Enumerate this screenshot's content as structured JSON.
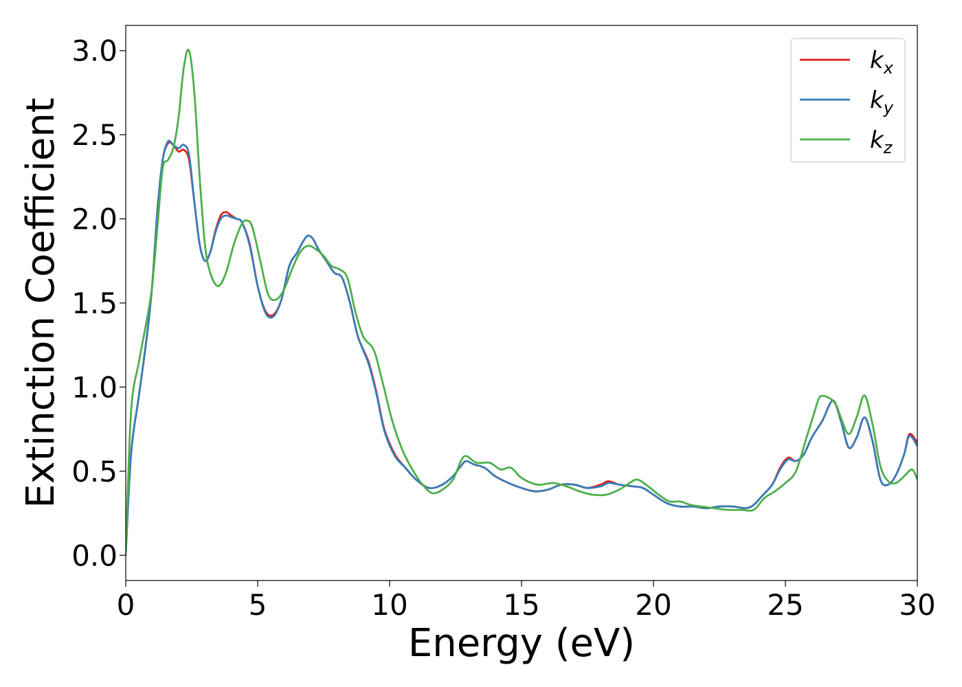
{
  "chart_data": {
    "type": "line",
    "title": "",
    "xlabel": "Energy (eV)",
    "ylabel": "Extinction Coefficient",
    "xlim": [
      0,
      30
    ],
    "ylim": [
      -0.15,
      3.15
    ],
    "xticks": [
      0,
      5,
      10,
      15,
      20,
      25,
      30
    ],
    "xtick_labels": [
      "0",
      "5",
      "10",
      "15",
      "20",
      "25",
      "30"
    ],
    "yticks": [
      0.0,
      0.5,
      1.0,
      1.5,
      2.0,
      2.5,
      3.0
    ],
    "ytick_labels": [
      "0.0",
      "0.5",
      "1.0",
      "1.5",
      "2.0",
      "2.5",
      "3.0"
    ],
    "grid": false,
    "legend_position": "top-right",
    "series": [
      {
        "name": "k",
        "subscript": "x",
        "color": "#e41a1c",
        "points": [
          [
            0,
            0.0
          ],
          [
            0.2,
            0.6
          ],
          [
            0.5,
            0.95
          ],
          [
            0.8,
            1.3
          ],
          [
            1.0,
            1.6
          ],
          [
            1.2,
            2.05
          ],
          [
            1.4,
            2.35
          ],
          [
            1.6,
            2.45
          ],
          [
            1.8,
            2.44
          ],
          [
            2.0,
            2.4
          ],
          [
            2.2,
            2.41
          ],
          [
            2.4,
            2.35
          ],
          [
            2.6,
            2.1
          ],
          [
            2.8,
            1.85
          ],
          [
            3.0,
            1.75
          ],
          [
            3.2,
            1.8
          ],
          [
            3.4,
            1.93
          ],
          [
            3.6,
            2.02
          ],
          [
            3.8,
            2.04
          ],
          [
            4.0,
            2.02
          ],
          [
            4.2,
            2.0
          ],
          [
            4.4,
            1.98
          ],
          [
            4.7,
            1.85
          ],
          [
            5.0,
            1.6
          ],
          [
            5.3,
            1.45
          ],
          [
            5.6,
            1.43
          ],
          [
            5.9,
            1.52
          ],
          [
            6.2,
            1.72
          ],
          [
            6.5,
            1.8
          ],
          [
            6.7,
            1.86
          ],
          [
            6.9,
            1.9
          ],
          [
            7.1,
            1.88
          ],
          [
            7.3,
            1.82
          ],
          [
            7.6,
            1.75
          ],
          [
            7.9,
            1.68
          ],
          [
            8.2,
            1.65
          ],
          [
            8.5,
            1.5
          ],
          [
            8.8,
            1.3
          ],
          [
            9.2,
            1.15
          ],
          [
            9.5,
            0.97
          ],
          [
            9.8,
            0.75
          ],
          [
            10.2,
            0.6
          ],
          [
            10.6,
            0.52
          ],
          [
            11.0,
            0.45
          ],
          [
            11.5,
            0.4
          ],
          [
            12.0,
            0.42
          ],
          [
            12.4,
            0.47
          ],
          [
            12.7,
            0.53
          ],
          [
            12.9,
            0.56
          ],
          [
            13.2,
            0.54
          ],
          [
            13.6,
            0.52
          ],
          [
            14.0,
            0.47
          ],
          [
            14.5,
            0.43
          ],
          [
            15.0,
            0.4
          ],
          [
            15.5,
            0.38
          ],
          [
            16.0,
            0.39
          ],
          [
            16.5,
            0.42
          ],
          [
            17.0,
            0.42
          ],
          [
            17.5,
            0.4
          ],
          [
            18.0,
            0.42
          ],
          [
            18.3,
            0.44
          ],
          [
            18.7,
            0.42
          ],
          [
            19.2,
            0.41
          ],
          [
            19.6,
            0.4
          ],
          [
            20.0,
            0.36
          ],
          [
            20.5,
            0.31
          ],
          [
            21.0,
            0.29
          ],
          [
            21.5,
            0.29
          ],
          [
            22.0,
            0.28
          ],
          [
            22.5,
            0.29
          ],
          [
            23.0,
            0.29
          ],
          [
            23.5,
            0.28
          ],
          [
            23.8,
            0.3
          ],
          [
            24.1,
            0.35
          ],
          [
            24.5,
            0.42
          ],
          [
            24.8,
            0.52
          ],
          [
            25.1,
            0.58
          ],
          [
            25.4,
            0.56
          ],
          [
            25.7,
            0.6
          ],
          [
            26.0,
            0.7
          ],
          [
            26.4,
            0.8
          ],
          [
            26.8,
            0.92
          ],
          [
            27.1,
            0.8
          ],
          [
            27.4,
            0.64
          ],
          [
            27.7,
            0.7
          ],
          [
            28.0,
            0.82
          ],
          [
            28.3,
            0.68
          ],
          [
            28.6,
            0.45
          ],
          [
            28.9,
            0.42
          ],
          [
            29.2,
            0.48
          ],
          [
            29.5,
            0.6
          ],
          [
            29.7,
            0.72
          ],
          [
            30.0,
            0.67
          ]
        ]
      },
      {
        "name": "k",
        "subscript": "y",
        "color": "#377eb8",
        "points": [
          [
            0,
            0.0
          ],
          [
            0.2,
            0.6
          ],
          [
            0.5,
            0.95
          ],
          [
            0.8,
            1.3
          ],
          [
            1.0,
            1.6
          ],
          [
            1.2,
            2.05
          ],
          [
            1.4,
            2.35
          ],
          [
            1.6,
            2.46
          ],
          [
            1.8,
            2.44
          ],
          [
            2.0,
            2.42
          ],
          [
            2.2,
            2.44
          ],
          [
            2.4,
            2.38
          ],
          [
            2.6,
            2.1
          ],
          [
            2.8,
            1.85
          ],
          [
            3.0,
            1.75
          ],
          [
            3.2,
            1.8
          ],
          [
            3.4,
            1.92
          ],
          [
            3.6,
            2.0
          ],
          [
            3.8,
            2.02
          ],
          [
            4.0,
            2.01
          ],
          [
            4.2,
            2.0
          ],
          [
            4.4,
            1.98
          ],
          [
            4.7,
            1.84
          ],
          [
            5.0,
            1.6
          ],
          [
            5.3,
            1.44
          ],
          [
            5.6,
            1.42
          ],
          [
            5.9,
            1.52
          ],
          [
            6.2,
            1.72
          ],
          [
            6.5,
            1.8
          ],
          [
            6.7,
            1.86
          ],
          [
            6.9,
            1.9
          ],
          [
            7.1,
            1.88
          ],
          [
            7.3,
            1.82
          ],
          [
            7.6,
            1.75
          ],
          [
            7.9,
            1.68
          ],
          [
            8.2,
            1.65
          ],
          [
            8.5,
            1.5
          ],
          [
            8.8,
            1.3
          ],
          [
            9.2,
            1.14
          ],
          [
            9.5,
            0.96
          ],
          [
            9.8,
            0.74
          ],
          [
            10.2,
            0.59
          ],
          [
            10.6,
            0.52
          ],
          [
            11.0,
            0.45
          ],
          [
            11.5,
            0.4
          ],
          [
            12.0,
            0.42
          ],
          [
            12.4,
            0.47
          ],
          [
            12.7,
            0.53
          ],
          [
            12.9,
            0.56
          ],
          [
            13.2,
            0.54
          ],
          [
            13.6,
            0.52
          ],
          [
            14.0,
            0.47
          ],
          [
            14.5,
            0.43
          ],
          [
            15.0,
            0.4
          ],
          [
            15.5,
            0.38
          ],
          [
            16.0,
            0.39
          ],
          [
            16.5,
            0.42
          ],
          [
            17.0,
            0.42
          ],
          [
            17.5,
            0.4
          ],
          [
            18.0,
            0.41
          ],
          [
            18.3,
            0.43
          ],
          [
            18.7,
            0.42
          ],
          [
            19.2,
            0.41
          ],
          [
            19.6,
            0.4
          ],
          [
            20.0,
            0.36
          ],
          [
            20.5,
            0.31
          ],
          [
            21.0,
            0.29
          ],
          [
            21.5,
            0.29
          ],
          [
            22.0,
            0.28
          ],
          [
            22.5,
            0.29
          ],
          [
            23.0,
            0.29
          ],
          [
            23.5,
            0.28
          ],
          [
            23.8,
            0.3
          ],
          [
            24.1,
            0.35
          ],
          [
            24.5,
            0.42
          ],
          [
            24.8,
            0.51
          ],
          [
            25.1,
            0.57
          ],
          [
            25.4,
            0.56
          ],
          [
            25.7,
            0.6
          ],
          [
            26.0,
            0.7
          ],
          [
            26.4,
            0.8
          ],
          [
            26.8,
            0.92
          ],
          [
            27.1,
            0.8
          ],
          [
            27.4,
            0.64
          ],
          [
            27.7,
            0.7
          ],
          [
            28.0,
            0.82
          ],
          [
            28.3,
            0.68
          ],
          [
            28.6,
            0.45
          ],
          [
            28.9,
            0.42
          ],
          [
            29.2,
            0.48
          ],
          [
            29.5,
            0.6
          ],
          [
            29.7,
            0.71
          ],
          [
            30.0,
            0.65
          ]
        ]
      },
      {
        "name": "k",
        "subscript": "z",
        "color": "#4daf4a",
        "points": [
          [
            0,
            0.0
          ],
          [
            0.2,
            0.85
          ],
          [
            0.5,
            1.15
          ],
          [
            0.8,
            1.4
          ],
          [
            1.0,
            1.6
          ],
          [
            1.2,
            1.95
          ],
          [
            1.4,
            2.3
          ],
          [
            1.6,
            2.35
          ],
          [
            1.8,
            2.42
          ],
          [
            2.0,
            2.6
          ],
          [
            2.2,
            2.9
          ],
          [
            2.4,
            3.0
          ],
          [
            2.6,
            2.75
          ],
          [
            2.8,
            2.25
          ],
          [
            3.0,
            1.85
          ],
          [
            3.2,
            1.68
          ],
          [
            3.5,
            1.6
          ],
          [
            3.8,
            1.68
          ],
          [
            4.1,
            1.85
          ],
          [
            4.4,
            1.97
          ],
          [
            4.6,
            1.99
          ],
          [
            4.8,
            1.95
          ],
          [
            5.1,
            1.75
          ],
          [
            5.4,
            1.55
          ],
          [
            5.7,
            1.52
          ],
          [
            6.0,
            1.58
          ],
          [
            6.3,
            1.7
          ],
          [
            6.6,
            1.8
          ],
          [
            6.9,
            1.84
          ],
          [
            7.2,
            1.82
          ],
          [
            7.5,
            1.78
          ],
          [
            7.8,
            1.72
          ],
          [
            8.1,
            1.7
          ],
          [
            8.4,
            1.65
          ],
          [
            8.7,
            1.45
          ],
          [
            9.0,
            1.3
          ],
          [
            9.4,
            1.22
          ],
          [
            9.7,
            1.05
          ],
          [
            10.1,
            0.8
          ],
          [
            10.5,
            0.62
          ],
          [
            10.9,
            0.5
          ],
          [
            11.2,
            0.43
          ],
          [
            11.6,
            0.37
          ],
          [
            12.0,
            0.39
          ],
          [
            12.4,
            0.45
          ],
          [
            12.7,
            0.56
          ],
          [
            12.9,
            0.59
          ],
          [
            13.3,
            0.55
          ],
          [
            13.8,
            0.55
          ],
          [
            14.2,
            0.51
          ],
          [
            14.6,
            0.52
          ],
          [
            15.0,
            0.46
          ],
          [
            15.6,
            0.42
          ],
          [
            16.2,
            0.43
          ],
          [
            16.7,
            0.41
          ],
          [
            17.2,
            0.38
          ],
          [
            17.7,
            0.36
          ],
          [
            18.2,
            0.36
          ],
          [
            18.7,
            0.39
          ],
          [
            19.1,
            0.43
          ],
          [
            19.4,
            0.45
          ],
          [
            19.8,
            0.41
          ],
          [
            20.2,
            0.36
          ],
          [
            20.6,
            0.32
          ],
          [
            21.0,
            0.32
          ],
          [
            21.4,
            0.3
          ],
          [
            21.8,
            0.29
          ],
          [
            22.3,
            0.28
          ],
          [
            22.8,
            0.27
          ],
          [
            23.3,
            0.27
          ],
          [
            23.8,
            0.27
          ],
          [
            24.2,
            0.34
          ],
          [
            24.6,
            0.38
          ],
          [
            25.0,
            0.43
          ],
          [
            25.4,
            0.5
          ],
          [
            25.8,
            0.7
          ],
          [
            26.1,
            0.85
          ],
          [
            26.3,
            0.94
          ],
          [
            26.6,
            0.94
          ],
          [
            26.9,
            0.9
          ],
          [
            27.1,
            0.82
          ],
          [
            27.4,
            0.72
          ],
          [
            27.7,
            0.82
          ],
          [
            28.0,
            0.95
          ],
          [
            28.3,
            0.78
          ],
          [
            28.6,
            0.53
          ],
          [
            28.9,
            0.44
          ],
          [
            29.2,
            0.43
          ],
          [
            29.5,
            0.47
          ],
          [
            29.8,
            0.51
          ],
          [
            30.0,
            0.45
          ]
        ]
      }
    ]
  }
}
